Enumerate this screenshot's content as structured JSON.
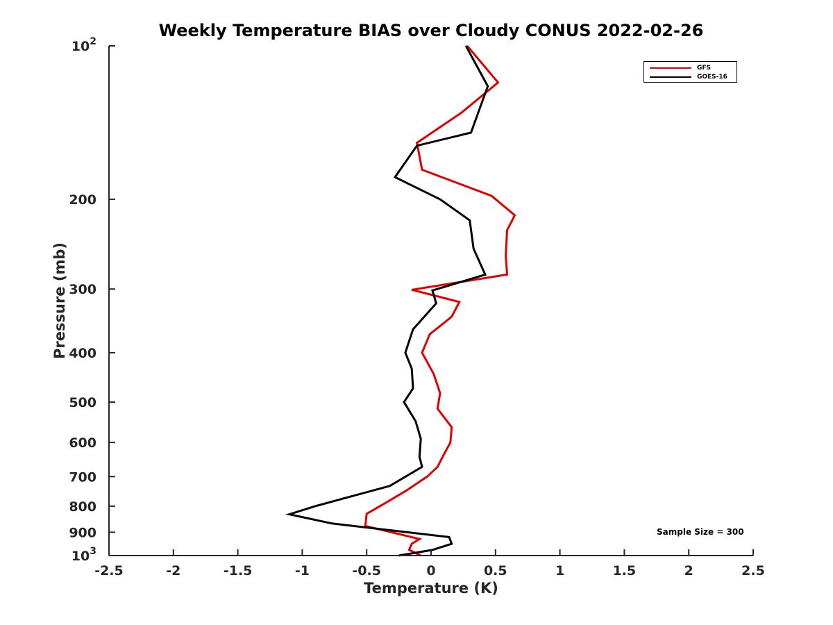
{
  "chart_data": {
    "type": "line",
    "title": "Weekly Temperature BIAS over Cloudy CONUS 2022-02-26",
    "xlabel": "Temperature (K)",
    "ylabel": "Pressure (mb)",
    "xlim": [
      -2.5,
      2.5
    ],
    "ylim": [
      100,
      1000
    ],
    "y_scale": "log",
    "y_reversed": true,
    "x_ticks": [
      "-2.5",
      "-2",
      "-1.5",
      "-1",
      "-0.5",
      "0",
      "0.5",
      "1",
      "1.5",
      "2",
      "2.5"
    ],
    "x_tick_values": [
      -2.5,
      -2,
      -1.5,
      -1,
      -0.5,
      0,
      0.5,
      1,
      1.5,
      2,
      2.5
    ],
    "y_ticks": [
      {
        "value": 100,
        "base": "10",
        "exp": "2"
      },
      {
        "value": 200,
        "label": "200"
      },
      {
        "value": 300,
        "label": "300"
      },
      {
        "value": 400,
        "label": "400"
      },
      {
        "value": 500,
        "label": "500"
      },
      {
        "value": 600,
        "label": "600"
      },
      {
        "value": 700,
        "label": "700"
      },
      {
        "value": 800,
        "label": "800"
      },
      {
        "value": 900,
        "label": "900"
      },
      {
        "value": 1000,
        "base": "10",
        "exp": "3"
      }
    ],
    "grid": false,
    "legend_position": "top-right",
    "series": [
      {
        "name": "GFS",
        "color": "#e00000",
        "points": [
          [
            0.28,
            100
          ],
          [
            0.52,
            118
          ],
          [
            0.24,
            135
          ],
          [
            -0.11,
            155
          ],
          [
            -0.07,
            175
          ],
          [
            0.47,
            197
          ],
          [
            0.65,
            215
          ],
          [
            0.59,
            230
          ],
          [
            0.58,
            258
          ],
          [
            0.59,
            281
          ],
          [
            -0.15,
            301
          ],
          [
            0.22,
            318
          ],
          [
            0.16,
            340
          ],
          [
            -0.01,
            368
          ],
          [
            -0.07,
            400
          ],
          [
            0.02,
            440
          ],
          [
            0.07,
            480
          ],
          [
            0.05,
            515
          ],
          [
            0.16,
            560
          ],
          [
            0.15,
            600
          ],
          [
            0.09,
            640
          ],
          [
            0.05,
            670
          ],
          [
            -0.03,
            700
          ],
          [
            -0.19,
            745
          ],
          [
            -0.36,
            790
          ],
          [
            -0.5,
            828
          ],
          [
            -0.51,
            875
          ],
          [
            -0.09,
            928
          ],
          [
            -0.15,
            948
          ],
          [
            -0.17,
            975
          ],
          [
            -0.08,
            1000
          ]
        ]
      },
      {
        "name": "GOES-16",
        "color": "#000000",
        "points": [
          [
            0.27,
            100
          ],
          [
            0.44,
            120
          ],
          [
            0.31,
            148
          ],
          [
            -0.11,
            157
          ],
          [
            -0.28,
            181
          ],
          [
            0.07,
            200
          ],
          [
            0.3,
            220
          ],
          [
            0.33,
            250
          ],
          [
            0.42,
            281
          ],
          [
            0.01,
            302
          ],
          [
            0.04,
            320
          ],
          [
            -0.14,
            360
          ],
          [
            -0.2,
            400
          ],
          [
            -0.15,
            430
          ],
          [
            -0.14,
            470
          ],
          [
            -0.21,
            500
          ],
          [
            -0.12,
            545
          ],
          [
            -0.08,
            590
          ],
          [
            -0.09,
            640
          ],
          [
            -0.07,
            670
          ],
          [
            -0.32,
            730
          ],
          [
            -0.9,
            800
          ],
          [
            -1.1,
            830
          ],
          [
            -0.77,
            865
          ],
          [
            0.14,
            920
          ],
          [
            0.16,
            948
          ],
          [
            0.01,
            975
          ],
          [
            -0.25,
            1000
          ]
        ]
      }
    ],
    "annotations": [
      {
        "text": "Sample Size = 300"
      }
    ]
  }
}
